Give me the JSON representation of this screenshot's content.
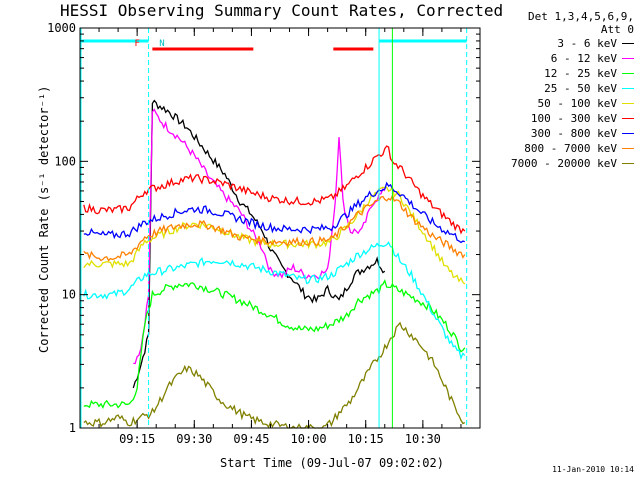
{
  "chart_data": {
    "type": "line",
    "title": "HESSI Observing Summary Count Rates, Corrected",
    "ylabel": "Corrected Count Rate (s⁻¹ detector⁻¹)",
    "xlabel": "Start Time (09-Jul-07 09:02:02)",
    "yscale": "log",
    "ylim": [
      1,
      1000
    ],
    "xlim_minutes": [
      540,
      645
    ],
    "x_tick_labels": [
      "09:15",
      "09:30",
      "09:45",
      "10:00",
      "10:15",
      "10:30"
    ],
    "x_tick_minutes": [
      555,
      570,
      585,
      600,
      615,
      630
    ],
    "y_tick_labels": [
      "1",
      "10",
      "100",
      "1000"
    ],
    "y_tick_values": [
      1,
      10,
      100,
      1000
    ],
    "legend_header": [
      "Det 1,3,4,5,6,9,",
      "Att 0"
    ],
    "legend_placement": "right",
    "markers": [
      {
        "label": "F",
        "minute": 558.5,
        "color": "#ff0000"
      },
      {
        "label": "N",
        "minute": 559.5,
        "color": "#00c0c0"
      }
    ],
    "series": [
      {
        "name": "3 - 6 keV",
        "color": "#000000",
        "points": [
          [
            554,
            2
          ],
          [
            556,
            3
          ],
          [
            558,
            5
          ],
          [
            559,
            280
          ],
          [
            563,
            240
          ],
          [
            568,
            180
          ],
          [
            573,
            120
          ],
          [
            578,
            80
          ],
          [
            582,
            50
          ],
          [
            585,
            40
          ],
          [
            588,
            30
          ],
          [
            590,
            22
          ],
          [
            593,
            16
          ],
          [
            596,
            13
          ],
          [
            599,
            10
          ],
          [
            602,
            9
          ],
          [
            605,
            11
          ],
          [
            608,
            9
          ],
          [
            612,
            14
          ],
          [
            615,
            16
          ],
          [
            618,
            18
          ],
          [
            620,
            15
          ]
        ]
      },
      {
        "name": "6 - 12 keV",
        "color": "#ff00ff",
        "points": [
          [
            554,
            3
          ],
          [
            556,
            4
          ],
          [
            558,
            10
          ],
          [
            559,
            240
          ],
          [
            562,
            190
          ],
          [
            566,
            150
          ],
          [
            570,
            110
          ],
          [
            574,
            75
          ],
          [
            578,
            55
          ],
          [
            582,
            42
          ],
          [
            585,
            30
          ],
          [
            588,
            22
          ],
          [
            590,
            15
          ],
          [
            593,
            14
          ],
          [
            596,
            16
          ],
          [
            599,
            14
          ],
          [
            602,
            14
          ],
          [
            605,
            15
          ],
          [
            607,
            50
          ],
          [
            608,
            160
          ],
          [
            609,
            50
          ],
          [
            611,
            30
          ],
          [
            614,
            30
          ],
          [
            617,
            50
          ],
          [
            620,
            60
          ]
        ]
      },
      {
        "name": "12 - 25 keV",
        "color": "#00ff00",
        "points": [
          [
            541,
            1.5
          ],
          [
            553,
            1.5
          ],
          [
            555,
            2
          ],
          [
            557,
            6
          ],
          [
            559,
            10
          ],
          [
            562,
            11
          ],
          [
            566,
            12
          ],
          [
            570,
            12
          ],
          [
            574,
            11
          ],
          [
            578,
            10
          ],
          [
            582,
            9
          ],
          [
            586,
            8
          ],
          [
            590,
            7
          ],
          [
            594,
            6
          ],
          [
            598,
            5.5
          ],
          [
            602,
            5.5
          ],
          [
            606,
            6
          ],
          [
            610,
            7
          ],
          [
            613,
            9
          ],
          [
            616,
            10
          ],
          [
            619,
            11
          ],
          [
            620,
            12
          ],
          [
            623,
            11
          ],
          [
            626,
            10
          ],
          [
            629,
            9
          ],
          [
            632,
            8
          ],
          [
            636,
            6
          ],
          [
            638,
            5
          ],
          [
            640,
            4
          ],
          [
            641,
            4
          ]
        ]
      },
      {
        "name": "25 - 50 keV",
        "color": "#00ffff",
        "points": [
          [
            541,
            10
          ],
          [
            545,
            10
          ],
          [
            549,
            10
          ],
          [
            553,
            11
          ],
          [
            557,
            14
          ],
          [
            561,
            15
          ],
          [
            566,
            16
          ],
          [
            570,
            17
          ],
          [
            574,
            18
          ],
          [
            578,
            18
          ],
          [
            582,
            17
          ],
          [
            586,
            16
          ],
          [
            590,
            15
          ],
          [
            594,
            14
          ],
          [
            598,
            13
          ],
          [
            602,
            13
          ],
          [
            606,
            14
          ],
          [
            610,
            17
          ],
          [
            613,
            20
          ],
          [
            616,
            22
          ],
          [
            619,
            24
          ],
          [
            621,
            25
          ],
          [
            624,
            18
          ],
          [
            627,
            14
          ],
          [
            630,
            10
          ],
          [
            633,
            7
          ],
          [
            636,
            5
          ],
          [
            638,
            4
          ],
          [
            640,
            3.5
          ],
          [
            641,
            3.5
          ]
        ]
      },
      {
        "name": "50 - 100 keV",
        "color": "#e0e000",
        "points": [
          [
            541,
            17
          ],
          [
            545,
            17
          ],
          [
            549,
            17
          ],
          [
            553,
            17
          ],
          [
            557,
            25
          ],
          [
            561,
            28
          ],
          [
            566,
            32
          ],
          [
            570,
            34
          ],
          [
            574,
            33
          ],
          [
            578,
            30
          ],
          [
            582,
            27
          ],
          [
            586,
            25
          ],
          [
            590,
            24
          ],
          [
            594,
            24
          ],
          [
            598,
            24
          ],
          [
            602,
            24
          ],
          [
            606,
            25
          ],
          [
            610,
            32
          ],
          [
            613,
            40
          ],
          [
            616,
            52
          ],
          [
            619,
            60
          ],
          [
            621,
            62
          ],
          [
            624,
            55
          ],
          [
            627,
            40
          ],
          [
            630,
            30
          ],
          [
            633,
            22
          ],
          [
            636,
            16
          ],
          [
            639,
            13
          ],
          [
            641,
            12
          ]
        ]
      },
      {
        "name": "100 - 300 keV",
        "color": "#ff0000",
        "points": [
          [
            541,
            45
          ],
          [
            545,
            43
          ],
          [
            549,
            43
          ],
          [
            553,
            45
          ],
          [
            557,
            60
          ],
          [
            561,
            65
          ],
          [
            566,
            72
          ],
          [
            570,
            75
          ],
          [
            574,
            72
          ],
          [
            578,
            68
          ],
          [
            582,
            62
          ],
          [
            586,
            57
          ],
          [
            590,
            53
          ],
          [
            594,
            51
          ],
          [
            598,
            50
          ],
          [
            602,
            50
          ],
          [
            606,
            53
          ],
          [
            610,
            65
          ],
          [
            613,
            80
          ],
          [
            616,
            95
          ],
          [
            618,
            110
          ],
          [
            620,
            120
          ],
          [
            621,
            125
          ],
          [
            622,
            100
          ],
          [
            624,
            90
          ],
          [
            627,
            70
          ],
          [
            630,
            55
          ],
          [
            633,
            45
          ],
          [
            636,
            38
          ],
          [
            639,
            32
          ],
          [
            641,
            30
          ]
        ]
      },
      {
        "name": "300 - 800 keV",
        "color": "#0000ff",
        "points": [
          [
            541,
            30
          ],
          [
            545,
            28
          ],
          [
            549,
            28
          ],
          [
            553,
            29
          ],
          [
            557,
            35
          ],
          [
            561,
            38
          ],
          [
            566,
            42
          ],
          [
            570,
            44
          ],
          [
            574,
            43
          ],
          [
            578,
            40
          ],
          [
            582,
            37
          ],
          [
            586,
            34
          ],
          [
            590,
            32
          ],
          [
            594,
            31
          ],
          [
            598,
            31
          ],
          [
            602,
            31
          ],
          [
            606,
            32
          ],
          [
            610,
            40
          ],
          [
            613,
            48
          ],
          [
            616,
            56
          ],
          [
            619,
            62
          ],
          [
            621,
            66
          ],
          [
            624,
            58
          ],
          [
            627,
            48
          ],
          [
            630,
            40
          ],
          [
            633,
            34
          ],
          [
            636,
            30
          ],
          [
            639,
            27
          ],
          [
            641,
            25
          ]
        ]
      },
      {
        "name": "800 - 7000 keV",
        "color": "#ff8000",
        "points": [
          [
            541,
            20
          ],
          [
            545,
            19
          ],
          [
            549,
            19
          ],
          [
            553,
            20
          ],
          [
            557,
            27
          ],
          [
            561,
            30
          ],
          [
            566,
            33
          ],
          [
            570,
            34
          ],
          [
            574,
            33
          ],
          [
            578,
            30
          ],
          [
            582,
            27
          ],
          [
            586,
            26
          ],
          [
            590,
            25
          ],
          [
            594,
            25
          ],
          [
            598,
            25
          ],
          [
            602,
            25
          ],
          [
            606,
            26
          ],
          [
            610,
            33
          ],
          [
            613,
            40
          ],
          [
            616,
            46
          ],
          [
            619,
            52
          ],
          [
            621,
            55
          ],
          [
            624,
            48
          ],
          [
            627,
            38
          ],
          [
            630,
            32
          ],
          [
            633,
            27
          ],
          [
            636,
            24
          ],
          [
            639,
            21
          ],
          [
            641,
            20
          ]
        ]
      },
      {
        "name": "7000 - 20000 keV",
        "color": "#808000",
        "points": [
          [
            541,
            1.1
          ],
          [
            546,
            1.1
          ],
          [
            550,
            1.2
          ],
          [
            553,
            1.1
          ],
          [
            556,
            1.2
          ],
          [
            559,
            1.3
          ],
          [
            561,
            1.6
          ],
          [
            563,
            2
          ],
          [
            566,
            2.5
          ],
          [
            568,
            2.8
          ],
          [
            571,
            2.5
          ],
          [
            574,
            2
          ],
          [
            577,
            1.6
          ],
          [
            580,
            1.4
          ],
          [
            584,
            1.2
          ],
          [
            588,
            1.1
          ],
          [
            592,
            1.05
          ],
          [
            596,
            1
          ],
          [
            600,
            1
          ],
          [
            604,
            1
          ],
          [
            606,
            1.1
          ],
          [
            608,
            1.3
          ],
          [
            611,
            1.6
          ],
          [
            614,
            2.2
          ],
          [
            617,
            3
          ],
          [
            620,
            4
          ],
          [
            622,
            5
          ],
          [
            624,
            6
          ],
          [
            627,
            5
          ],
          [
            630,
            4
          ],
          [
            633,
            3
          ],
          [
            636,
            2
          ],
          [
            638,
            1.5
          ],
          [
            640,
            1.2
          ],
          [
            641,
            1.1
          ]
        ]
      }
    ],
    "attenuator_bars": [
      {
        "color": "#ff0000",
        "start_minute": 559,
        "end_minute": 585.5
      },
      {
        "color": "#ff0000",
        "start_minute": 606.5,
        "end_minute": 617
      }
    ],
    "night_bars": [
      {
        "color": "#00ffff",
        "start_minute": 540,
        "end_minute": 558
      },
      {
        "color": "#00ffff",
        "start_minute": 618.5,
        "end_minute": 641.5
      }
    ],
    "verticals": [
      {
        "color": "#00ffff",
        "minute": 558,
        "style": "dashed"
      },
      {
        "color": "#00ffff",
        "minute": 618.5,
        "style": "solid"
      },
      {
        "color": "#00ffff",
        "minute": 641.5,
        "style": "dashed"
      },
      {
        "color": "#00ff00",
        "minute": 622,
        "style": "solid"
      }
    ]
  },
  "timestamp": "11-Jan-2010 10:14"
}
